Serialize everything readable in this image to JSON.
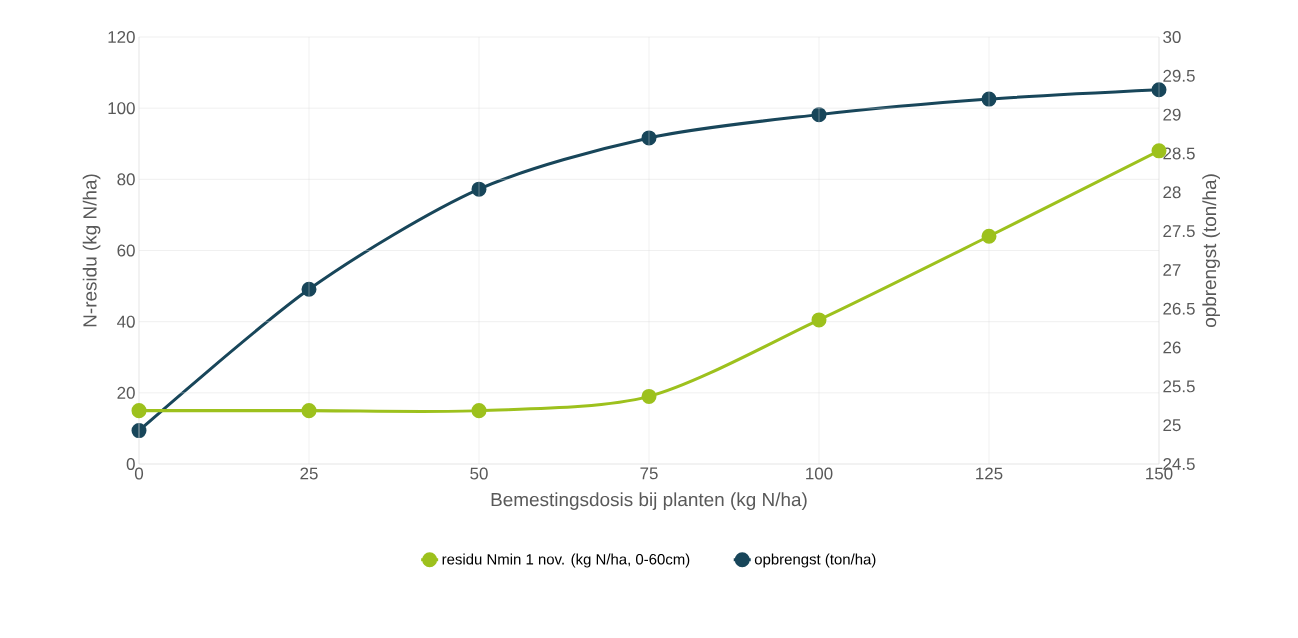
{
  "chart_data": {
    "type": "line",
    "xlabel": "Bemestingsdosis bij planten (kg N/ha)",
    "ylabel": "N-residu (kg N/ha)",
    "y2label": "opbrengst (ton/ha)",
    "x": [
      0,
      25,
      50,
      75,
      100,
      125,
      150
    ],
    "series": [
      {
        "name": "residu Nmin 1 nov. (kg N/ha, 0-60cm)",
        "color": "#9dc11d",
        "values": [
          15,
          15,
          15,
          19,
          40.5,
          64,
          88
        ]
      },
      {
        "name": "opbrengst (ton/ha)",
        "color": "#18465a",
        "axis": "y2",
        "values": [
          24.93,
          26.75,
          28.04,
          28.7,
          29.0,
          29.2,
          29.32
        ]
      }
    ],
    "xlim": [
      0,
      150
    ],
    "xticks": [
      0,
      25,
      50,
      75,
      100,
      125,
      150
    ],
    "ylim": [
      0,
      120
    ],
    "yticks": [
      0,
      20,
      40,
      60,
      80,
      100,
      120
    ],
    "y2lim": [
      24.5,
      30
    ],
    "y2ticks": [
      24.5,
      25,
      25.5,
      26,
      26.5,
      27,
      27.5,
      28,
      28.5,
      29,
      29.5,
      30
    ],
    "grid": true,
    "legend": "bottom",
    "marker": "circle",
    "line_style": "solid"
  }
}
